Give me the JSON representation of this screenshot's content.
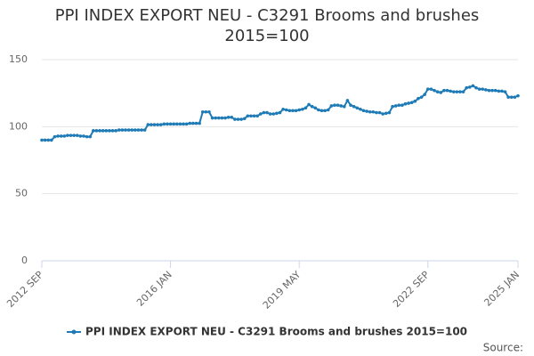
{
  "chart_data": {
    "type": "line",
    "title": "PPI INDEX EXPORT NEU - C3291 Brooms and brushes 2015=100",
    "credits": "Source:",
    "categories": [
      "2012 SEP",
      null,
      null,
      null,
      null,
      null,
      null,
      null,
      null,
      null,
      null,
      null,
      null,
      null,
      null,
      null,
      null,
      null,
      null,
      null,
      null,
      null,
      null,
      null,
      null,
      null,
      null,
      null,
      null,
      null,
      null,
      null,
      null,
      null,
      null,
      null,
      null,
      null,
      null,
      null,
      "2016 JAN",
      null,
      null,
      null,
      null,
      null,
      null,
      null,
      null,
      null,
      null,
      null,
      null,
      null,
      null,
      null,
      null,
      null,
      null,
      null,
      null,
      null,
      null,
      null,
      null,
      null,
      null,
      null,
      null,
      null,
      null,
      null,
      null,
      null,
      null,
      null,
      null,
      null,
      null,
      null,
      "2019 MAY",
      null,
      null,
      null,
      null,
      null,
      null,
      null,
      null,
      null,
      null,
      null,
      null,
      null,
      null,
      null,
      null,
      null,
      null,
      null,
      null,
      null,
      null,
      null,
      null,
      null,
      null,
      null,
      null,
      null,
      null,
      null,
      null,
      null,
      null,
      null,
      null,
      null,
      null,
      null,
      "2022 SEP",
      null,
      null,
      null,
      null,
      null,
      null,
      null,
      null,
      null,
      null,
      null,
      null,
      null,
      null,
      null,
      null,
      null,
      null,
      null,
      null,
      null,
      null,
      null,
      null,
      null,
      null,
      null,
      "2025 JAN"
    ],
    "series": [
      {
        "name": "PPI INDEX EXPORT NEU - C3291 Brooms and brushes 2015=100",
        "color": "#1f7bb6",
        "values": [
          90,
          90,
          90,
          90,
          92.5,
          93,
          93,
          93,
          93.5,
          93.5,
          93.5,
          93.5,
          93,
          93,
          92.5,
          92.5,
          97,
          97,
          97,
          97,
          97,
          97,
          97,
          97,
          97.5,
          97.5,
          97.5,
          97.5,
          97.5,
          97.5,
          97.5,
          97.5,
          97.5,
          101.5,
          101.5,
          101.5,
          101.5,
          101.5,
          102,
          102,
          102,
          102,
          102,
          102,
          102,
          102,
          102.5,
          102.5,
          102.5,
          102.5,
          111,
          111,
          111,
          106.5,
          106.5,
          106.5,
          106.5,
          106.5,
          107,
          107,
          105.5,
          105.5,
          105.5,
          106,
          108,
          108,
          108,
          108,
          109.5,
          110.5,
          110.5,
          109.5,
          109.5,
          110,
          110.5,
          113,
          112.5,
          112,
          112,
          112,
          112.5,
          113,
          114,
          116.5,
          115,
          114,
          112.5,
          112,
          112,
          112.5,
          115.5,
          116,
          116,
          115.5,
          115,
          119.5,
          116,
          115,
          114,
          113,
          112,
          111.5,
          111,
          111,
          110.5,
          110.5,
          109.5,
          110,
          110.5,
          115,
          115.5,
          116,
          116,
          117,
          117.5,
          118,
          119,
          121,
          122,
          124,
          128,
          128,
          127,
          126,
          125.5,
          127,
          127,
          126.5,
          126,
          126,
          126,
          126,
          129,
          129.5,
          130.5,
          129,
          128,
          128,
          127.5,
          127,
          127,
          127,
          126.5,
          126.5,
          126,
          122,
          122,
          122,
          123
        ]
      }
    ],
    "ylim": [
      0,
      150
    ],
    "yticks": [
      0,
      50,
      100,
      150
    ],
    "grid": true
  }
}
